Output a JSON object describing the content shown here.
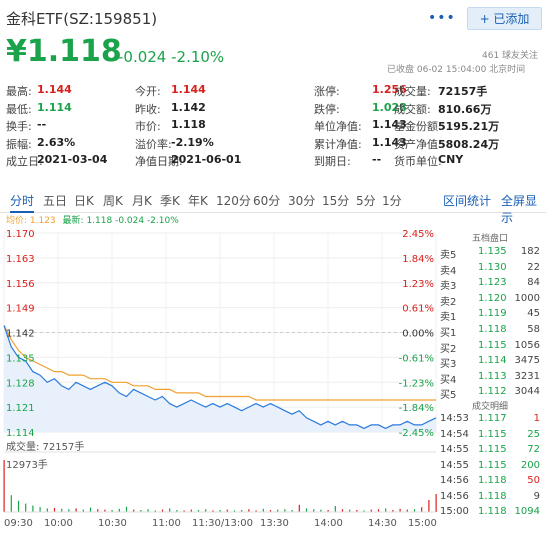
{
  "header": {
    "title": "金科ETF(SZ:159851)",
    "follow_label": "+ 已添加",
    "more_icon": "more-dots-icon",
    "price": "¥1.118",
    "change": "-0.024 -2.10%",
    "followers": "461 球友关注",
    "status": "已收盘 06-02 15:04:00 北京时间"
  },
  "stats": [
    [
      {
        "l": "最高:",
        "v": "1.144",
        "c": "red"
      },
      {
        "l": "今开:",
        "v": "1.144",
        "c": "red"
      },
      {
        "l": "涨停:",
        "v": "1.256",
        "c": "red"
      },
      {
        "l": "成交量:",
        "v": "72157手",
        "c": ""
      }
    ],
    [
      {
        "l": "最低:",
        "v": "1.114",
        "c": "green"
      },
      {
        "l": "昨收:",
        "v": "1.142",
        "c": ""
      },
      {
        "l": "跌停:",
        "v": "1.028",
        "c": "green"
      },
      {
        "l": "成交额:",
        "v": "810.66万",
        "c": ""
      }
    ],
    [
      {
        "l": "换手:",
        "v": "--",
        "c": ""
      },
      {
        "l": "市价:",
        "v": "1.118",
        "c": ""
      },
      {
        "l": "单位净值:",
        "v": "1.143",
        "c": ""
      },
      {
        "l": "基金份额:",
        "v": "5195.21万",
        "c": ""
      }
    ],
    [
      {
        "l": "振幅:",
        "v": "2.63%",
        "c": ""
      },
      {
        "l": "溢价率:",
        "v": "-2.19%",
        "c": ""
      },
      {
        "l": "累计净值:",
        "v": "1.143",
        "c": ""
      },
      {
        "l": "资产净值:",
        "v": "5808.24万",
        "c": ""
      }
    ],
    [
      {
        "l": "成立日:",
        "v": "2021-03-04",
        "c": ""
      },
      {
        "l": "净值日期:",
        "v": "2021-06-01",
        "c": ""
      },
      {
        "l": "到期日:",
        "v": "--",
        "c": ""
      },
      {
        "l": "货币单位:",
        "v": "CNY",
        "c": ""
      }
    ]
  ],
  "tabs": [
    "分时",
    "五日",
    "日K",
    "周K",
    "月K",
    "季K",
    "年K",
    "120分",
    "60分",
    "30分",
    "15分",
    "5分",
    "1分"
  ],
  "right_tabs": [
    "区间统计",
    "全屏显示"
  ],
  "legend": {
    "avg": "均价: 1.123",
    "latest": "最新: 1.118 -0.024 -2.10%"
  },
  "colors": {
    "up": "#d9201d",
    "down": "#1aa34a",
    "price_line": "#2b7bde",
    "avg_line": "#f0a030",
    "fill": "#e8f1fb"
  },
  "order_book": {
    "title": "五档盘口",
    "sells": [
      [
        "卖5",
        "1.135",
        "182"
      ],
      [
        "卖4",
        "1.130",
        "22"
      ],
      [
        "卖3",
        "1.123",
        "84"
      ],
      [
        "卖2",
        "1.120",
        "1000"
      ],
      [
        "卖1",
        "1.119",
        "45"
      ]
    ],
    "buys": [
      [
        "买1",
        "1.118",
        "58"
      ],
      [
        "买2",
        "1.115",
        "1056"
      ],
      [
        "买3",
        "1.114",
        "3475"
      ],
      [
        "买4",
        "1.113",
        "3231"
      ],
      [
        "买5",
        "1.112",
        "3044"
      ]
    ]
  },
  "trades": {
    "title": "成交明细",
    "rows": [
      [
        "14:53",
        "1.117",
        "1",
        "red"
      ],
      [
        "14:54",
        "1.115",
        "25",
        "green"
      ],
      [
        "14:55",
        "1.115",
        "72",
        "green"
      ],
      [
        "14:55",
        "1.115",
        "200",
        "green"
      ],
      [
        "14:56",
        "1.118",
        "50",
        "red"
      ],
      [
        "14:56",
        "1.118",
        "9",
        ""
      ],
      [
        "15:00",
        "1.118",
        "1094",
        "green"
      ]
    ]
  },
  "volume": {
    "label": "成交量: 72157手",
    "max_label": "12973手"
  },
  "chart_data": {
    "type": "line",
    "y_left_ticks": [
      "1.170",
      "1.163",
      "1.156",
      "1.149",
      "1.142",
      "1.135",
      "1.128",
      "1.121",
      "1.114"
    ],
    "y_right_ticks": [
      "2.45%",
      "1.84%",
      "1.23%",
      "0.61%",
      "0.00%",
      "-0.61%",
      "-1.23%",
      "-1.84%",
      "-2.45%"
    ],
    "x_ticks": [
      "09:30",
      "10:00",
      "10:30",
      "11:00",
      "11:30/13:00",
      "13:30",
      "14:00",
      "14:30",
      "15:00"
    ],
    "ylim": [
      1.114,
      1.17
    ],
    "prev_close": 1.142,
    "series": [
      {
        "values": [
          1.144,
          1.138,
          1.135,
          1.134,
          1.131,
          1.13,
          1.128,
          1.129,
          1.127,
          1.126,
          1.128,
          1.127,
          1.126,
          1.127,
          1.128,
          1.127,
          1.125,
          1.124,
          1.126,
          1.125,
          1.124,
          1.123,
          1.124,
          1.122,
          1.121,
          1.122,
          1.123,
          1.122,
          1.121,
          1.122,
          1.121,
          1.122,
          1.121,
          1.12,
          1.121,
          1.122,
          1.121,
          1.122,
          1.121,
          1.12,
          1.119,
          1.12,
          1.118,
          1.117,
          1.116,
          1.117,
          1.116,
          1.117,
          1.116,
          1.116,
          1.115,
          1.116,
          1.116,
          1.115,
          1.116,
          1.116,
          1.117,
          1.116,
          1.116,
          1.117,
          1.118
        ]
      },
      {
        "values": [
          1.144,
          1.14,
          1.137,
          1.135,
          1.134,
          1.133,
          1.132,
          1.131,
          1.131,
          1.13,
          1.13,
          1.13,
          1.129,
          1.129,
          1.129,
          1.128,
          1.128,
          1.128,
          1.127,
          1.127,
          1.127,
          1.126,
          1.126,
          1.126,
          1.125,
          1.125,
          1.125,
          1.125,
          1.124,
          1.124,
          1.124,
          1.124,
          1.124,
          1.124,
          1.124,
          1.123,
          1.123,
          1.123,
          1.123,
          1.123,
          1.123,
          1.123,
          1.123,
          1.123,
          1.123,
          1.123,
          1.123,
          1.123,
          1.123,
          1.123,
          1.123,
          1.123,
          1.123,
          1.123,
          1.123,
          1.123,
          1.123,
          1.123,
          1.123,
          1.123,
          1.123
        ]
      }
    ],
    "volume": [
      12973,
      4200,
      2800,
      2100,
      1600,
      1200,
      900,
      1000,
      800,
      700,
      900,
      600,
      1100,
      700,
      600,
      500,
      800,
      1300,
      600,
      500,
      700,
      400,
      600,
      900,
      500,
      400,
      600,
      500,
      700,
      400,
      500,
      600,
      400,
      500,
      700,
      400,
      800,
      500,
      600,
      700,
      500,
      1800,
      900,
      700,
      600,
      500,
      1500,
      700,
      600,
      500,
      400,
      600,
      700,
      900,
      500,
      800,
      600,
      700,
      1200,
      3000,
      4500
    ]
  }
}
